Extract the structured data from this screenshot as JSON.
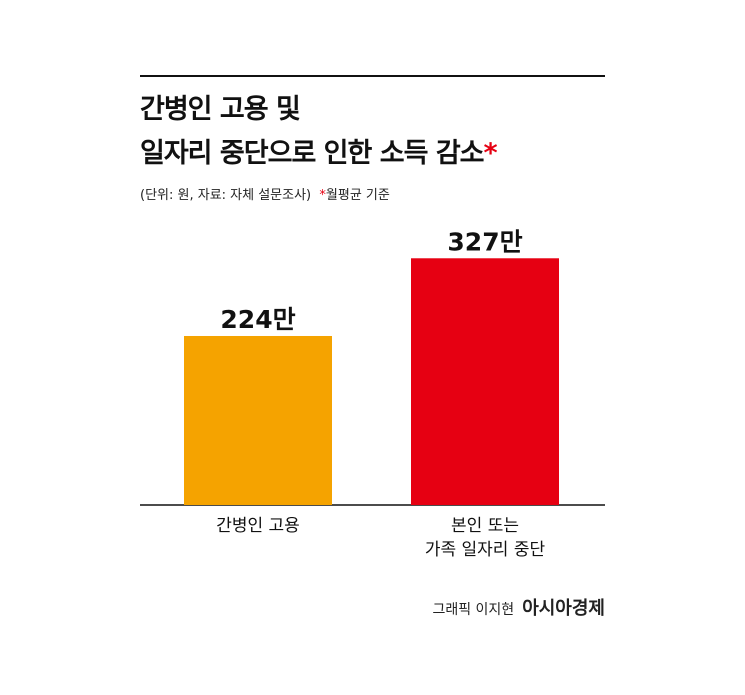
{
  "chart_data": {
    "type": "bar",
    "title": "간병인 고용 및\n일자리 중단으로 인한 소득 감소",
    "title_mark": "*",
    "subtitle": "(단위: 원, 자료: 자체 설문조사)",
    "note_mark": "*",
    "note": "월평균 기준",
    "categories": [
      "간병인 고용",
      "본인 또는\n가족 일자리 중단"
    ],
    "values": [
      224,
      327
    ],
    "value_labels": [
      "224만",
      "327만"
    ],
    "colors": [
      "#f5a300",
      "#e60012"
    ],
    "credit": "그래픽 이지현",
    "publisher": "아시아경제"
  }
}
